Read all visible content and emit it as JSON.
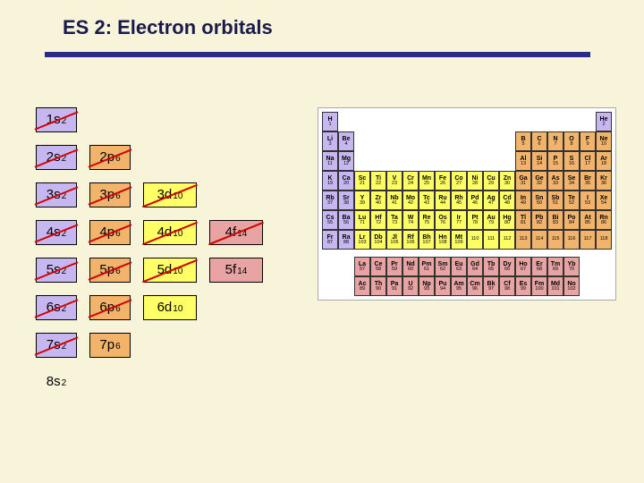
{
  "title": "ES 2: Electron orbitals",
  "orbital_colors": {
    "s": "#c7b7f0",
    "p": "#f2b36a",
    "d": "#ffff66",
    "f": "#e8a3a3",
    "none": "transparent"
  },
  "orbital_rows": [
    [
      {
        "t": "1s",
        "e": "2",
        "c": "s",
        "slash": true
      }
    ],
    [
      {
        "t": "2s",
        "e": "2",
        "c": "s",
        "slash": true
      },
      {
        "t": "2p",
        "e": "6",
        "c": "p",
        "slash": true
      }
    ],
    [
      {
        "t": "3s",
        "e": "2",
        "c": "s",
        "slash": true
      },
      {
        "t": "3p",
        "e": "6",
        "c": "p",
        "slash": true
      },
      {
        "t": "3d",
        "e": "10",
        "c": "d",
        "slash": true
      }
    ],
    [
      {
        "t": "4s",
        "e": "2",
        "c": "s",
        "slash": true
      },
      {
        "t": "4p",
        "e": "6",
        "c": "p",
        "slash": true
      },
      {
        "t": "4d",
        "e": "10",
        "c": "d",
        "slash": true
      },
      {
        "t": "4f",
        "e": "14",
        "c": "f",
        "slash": true
      }
    ],
    [
      {
        "t": "5s",
        "e": "2",
        "c": "s",
        "slash": true
      },
      {
        "t": "5p",
        "e": "6",
        "c": "p",
        "slash": true
      },
      {
        "t": "5d",
        "e": "10",
        "c": "d",
        "slash": true
      },
      {
        "t": "5f",
        "e": "14",
        "c": "f",
        "slash": false
      }
    ],
    [
      {
        "t": "6s",
        "e": "2",
        "c": "s",
        "slash": true
      },
      {
        "t": "6p",
        "e": "6",
        "c": "p",
        "slash": true
      },
      {
        "t": "6d",
        "e": "10",
        "c": "d",
        "slash": false
      }
    ],
    [
      {
        "t": "7s",
        "e": "2",
        "c": "s",
        "slash": true
      },
      {
        "t": "7p",
        "e": "6",
        "c": "p",
        "slash": false
      }
    ],
    [
      {
        "t": "8s",
        "e": "2",
        "c": "none",
        "slash": false,
        "noborder": true
      }
    ]
  ],
  "block_colors": {
    "s": "#c7b7f0",
    "p": "#f2b36a",
    "d": "#ffff66",
    "f": "#e8a3a3"
  },
  "elements_main": [
    {
      "n": 1,
      "s": "H",
      "r": 1,
      "c": 1,
      "b": "s"
    },
    {
      "n": 2,
      "s": "He",
      "r": 1,
      "c": 18,
      "b": "s"
    },
    {
      "n": 3,
      "s": "Li",
      "r": 2,
      "c": 1,
      "b": "s"
    },
    {
      "n": 4,
      "s": "Be",
      "r": 2,
      "c": 2,
      "b": "s"
    },
    {
      "n": 5,
      "s": "B",
      "r": 2,
      "c": 13,
      "b": "p"
    },
    {
      "n": 6,
      "s": "C",
      "r": 2,
      "c": 14,
      "b": "p"
    },
    {
      "n": 7,
      "s": "N",
      "r": 2,
      "c": 15,
      "b": "p"
    },
    {
      "n": 8,
      "s": "O",
      "r": 2,
      "c": 16,
      "b": "p"
    },
    {
      "n": 9,
      "s": "F",
      "r": 2,
      "c": 17,
      "b": "p"
    },
    {
      "n": 10,
      "s": "Ne",
      "r": 2,
      "c": 18,
      "b": "p"
    },
    {
      "n": 11,
      "s": "Na",
      "r": 3,
      "c": 1,
      "b": "s"
    },
    {
      "n": 12,
      "s": "Mg",
      "r": 3,
      "c": 2,
      "b": "s"
    },
    {
      "n": 13,
      "s": "Al",
      "r": 3,
      "c": 13,
      "b": "p"
    },
    {
      "n": 14,
      "s": "Si",
      "r": 3,
      "c": 14,
      "b": "p"
    },
    {
      "n": 15,
      "s": "P",
      "r": 3,
      "c": 15,
      "b": "p"
    },
    {
      "n": 16,
      "s": "S",
      "r": 3,
      "c": 16,
      "b": "p"
    },
    {
      "n": 17,
      "s": "Cl",
      "r": 3,
      "c": 17,
      "b": "p"
    },
    {
      "n": 18,
      "s": "Ar",
      "r": 3,
      "c": 18,
      "b": "p"
    },
    {
      "n": 19,
      "s": "K",
      "r": 4,
      "c": 1,
      "b": "s"
    },
    {
      "n": 20,
      "s": "Ca",
      "r": 4,
      "c": 2,
      "b": "s"
    },
    {
      "n": 21,
      "s": "Sc",
      "r": 4,
      "c": 3,
      "b": "d"
    },
    {
      "n": 22,
      "s": "Ti",
      "r": 4,
      "c": 4,
      "b": "d"
    },
    {
      "n": 23,
      "s": "V",
      "r": 4,
      "c": 5,
      "b": "d"
    },
    {
      "n": 24,
      "s": "Cr",
      "r": 4,
      "c": 6,
      "b": "d"
    },
    {
      "n": 25,
      "s": "Mn",
      "r": 4,
      "c": 7,
      "b": "d"
    },
    {
      "n": 26,
      "s": "Fe",
      "r": 4,
      "c": 8,
      "b": "d"
    },
    {
      "n": 27,
      "s": "Co",
      "r": 4,
      "c": 9,
      "b": "d"
    },
    {
      "n": 28,
      "s": "Ni",
      "r": 4,
      "c": 10,
      "b": "d"
    },
    {
      "n": 29,
      "s": "Cu",
      "r": 4,
      "c": 11,
      "b": "d"
    },
    {
      "n": 30,
      "s": "Zn",
      "r": 4,
      "c": 12,
      "b": "d"
    },
    {
      "n": 31,
      "s": "Ga",
      "r": 4,
      "c": 13,
      "b": "p"
    },
    {
      "n": 32,
      "s": "Ge",
      "r": 4,
      "c": 14,
      "b": "p"
    },
    {
      "n": 33,
      "s": "As",
      "r": 4,
      "c": 15,
      "b": "p"
    },
    {
      "n": 34,
      "s": "Se",
      "r": 4,
      "c": 16,
      "b": "p"
    },
    {
      "n": 35,
      "s": "Br",
      "r": 4,
      "c": 17,
      "b": "p"
    },
    {
      "n": 36,
      "s": "Kr",
      "r": 4,
      "c": 18,
      "b": "p"
    },
    {
      "n": 37,
      "s": "Rb",
      "r": 5,
      "c": 1,
      "b": "s"
    },
    {
      "n": 38,
      "s": "Sr",
      "r": 5,
      "c": 2,
      "b": "s"
    },
    {
      "n": 39,
      "s": "Y",
      "r": 5,
      "c": 3,
      "b": "d"
    },
    {
      "n": 40,
      "s": "Zr",
      "r": 5,
      "c": 4,
      "b": "d"
    },
    {
      "n": 41,
      "s": "Nb",
      "r": 5,
      "c": 5,
      "b": "d"
    },
    {
      "n": 42,
      "s": "Mo",
      "r": 5,
      "c": 6,
      "b": "d"
    },
    {
      "n": 43,
      "s": "Tc",
      "r": 5,
      "c": 7,
      "b": "d"
    },
    {
      "n": 44,
      "s": "Ru",
      "r": 5,
      "c": 8,
      "b": "d"
    },
    {
      "n": 45,
      "s": "Rh",
      "r": 5,
      "c": 9,
      "b": "d"
    },
    {
      "n": 46,
      "s": "Pd",
      "r": 5,
      "c": 10,
      "b": "d"
    },
    {
      "n": 47,
      "s": "Ag",
      "r": 5,
      "c": 11,
      "b": "d"
    },
    {
      "n": 48,
      "s": "Cd",
      "r": 5,
      "c": 12,
      "b": "d"
    },
    {
      "n": 49,
      "s": "In",
      "r": 5,
      "c": 13,
      "b": "p"
    },
    {
      "n": 50,
      "s": "Sn",
      "r": 5,
      "c": 14,
      "b": "p"
    },
    {
      "n": 51,
      "s": "Sb",
      "r": 5,
      "c": 15,
      "b": "p"
    },
    {
      "n": 52,
      "s": "Te",
      "r": 5,
      "c": 16,
      "b": "p"
    },
    {
      "n": 53,
      "s": "I",
      "r": 5,
      "c": 17,
      "b": "p"
    },
    {
      "n": 54,
      "s": "Xe",
      "r": 5,
      "c": 18,
      "b": "p"
    },
    {
      "n": 55,
      "s": "Cs",
      "r": 6,
      "c": 1,
      "b": "s"
    },
    {
      "n": 56,
      "s": "Ba",
      "r": 6,
      "c": 2,
      "b": "s"
    },
    {
      "n": 71,
      "s": "Lu",
      "r": 6,
      "c": 3,
      "b": "d"
    },
    {
      "n": 72,
      "s": "Hf",
      "r": 6,
      "c": 4,
      "b": "d"
    },
    {
      "n": 73,
      "s": "Ta",
      "r": 6,
      "c": 5,
      "b": "d"
    },
    {
      "n": 74,
      "s": "W",
      "r": 6,
      "c": 6,
      "b": "d"
    },
    {
      "n": 75,
      "s": "Re",
      "r": 6,
      "c": 7,
      "b": "d"
    },
    {
      "n": 76,
      "s": "Os",
      "r": 6,
      "c": 8,
      "b": "d"
    },
    {
      "n": 77,
      "s": "Ir",
      "r": 6,
      "c": 9,
      "b": "d"
    },
    {
      "n": 78,
      "s": "Pt",
      "r": 6,
      "c": 10,
      "b": "d"
    },
    {
      "n": 79,
      "s": "Au",
      "r": 6,
      "c": 11,
      "b": "d"
    },
    {
      "n": 80,
      "s": "Hg",
      "r": 6,
      "c": 12,
      "b": "d"
    },
    {
      "n": 81,
      "s": "Tl",
      "r": 6,
      "c": 13,
      "b": "p"
    },
    {
      "n": 82,
      "s": "Pb",
      "r": 6,
      "c": 14,
      "b": "p"
    },
    {
      "n": 83,
      "s": "Bi",
      "r": 6,
      "c": 15,
      "b": "p"
    },
    {
      "n": 84,
      "s": "Po",
      "r": 6,
      "c": 16,
      "b": "p"
    },
    {
      "n": 85,
      "s": "At",
      "r": 6,
      "c": 17,
      "b": "p"
    },
    {
      "n": 86,
      "s": "Rn",
      "r": 6,
      "c": 18,
      "b": "p"
    },
    {
      "n": 87,
      "s": "Fr",
      "r": 7,
      "c": 1,
      "b": "s"
    },
    {
      "n": 88,
      "s": "Ra",
      "r": 7,
      "c": 2,
      "b": "s"
    },
    {
      "n": 103,
      "s": "Lr",
      "r": 7,
      "c": 3,
      "b": "d"
    },
    {
      "n": 104,
      "s": "Db",
      "r": 7,
      "c": 4,
      "b": "d"
    },
    {
      "n": 105,
      "s": "Jl",
      "r": 7,
      "c": 5,
      "b": "d"
    },
    {
      "n": 106,
      "s": "Rf",
      "r": 7,
      "c": 6,
      "b": "d"
    },
    {
      "n": 107,
      "s": "Bh",
      "r": 7,
      "c": 7,
      "b": "d"
    },
    {
      "n": 108,
      "s": "Hn",
      "r": 7,
      "c": 8,
      "b": "d"
    },
    {
      "n": 109,
      "s": "Mt",
      "r": 7,
      "c": 9,
      "b": "d"
    },
    {
      "n": 110,
      "s": "",
      "r": 7,
      "c": 10,
      "b": "d"
    },
    {
      "n": 111,
      "s": "",
      "r": 7,
      "c": 11,
      "b": "d"
    },
    {
      "n": 112,
      "s": "",
      "r": 7,
      "c": 12,
      "b": "d"
    },
    {
      "n": 113,
      "s": "",
      "r": 7,
      "c": 13,
      "b": "p"
    },
    {
      "n": 114,
      "s": "",
      "r": 7,
      "c": 14,
      "b": "p"
    },
    {
      "n": 115,
      "s": "",
      "r": 7,
      "c": 15,
      "b": "p"
    },
    {
      "n": 116,
      "s": "",
      "r": 7,
      "c": 16,
      "b": "p"
    },
    {
      "n": 117,
      "s": "",
      "r": 7,
      "c": 17,
      "b": "p"
    },
    {
      "n": 118,
      "s": "",
      "r": 7,
      "c": 18,
      "b": "p"
    }
  ],
  "elements_f": [
    {
      "n": 57,
      "s": "La",
      "r": 1,
      "c": 1
    },
    {
      "n": 58,
      "s": "Ce",
      "r": 1,
      "c": 2
    },
    {
      "n": 59,
      "s": "Pr",
      "r": 1,
      "c": 3
    },
    {
      "n": 60,
      "s": "Nd",
      "r": 1,
      "c": 4
    },
    {
      "n": 61,
      "s": "Pm",
      "r": 1,
      "c": 5
    },
    {
      "n": 62,
      "s": "Sm",
      "r": 1,
      "c": 6
    },
    {
      "n": 63,
      "s": "Eu",
      "r": 1,
      "c": 7
    },
    {
      "n": 64,
      "s": "Gd",
      "r": 1,
      "c": 8
    },
    {
      "n": 65,
      "s": "Tb",
      "r": 1,
      "c": 9
    },
    {
      "n": 66,
      "s": "Dy",
      "r": 1,
      "c": 10
    },
    {
      "n": 67,
      "s": "Ho",
      "r": 1,
      "c": 11
    },
    {
      "n": 68,
      "s": "Er",
      "r": 1,
      "c": 12
    },
    {
      "n": 69,
      "s": "Tm",
      "r": 1,
      "c": 13
    },
    {
      "n": 70,
      "s": "Yb",
      "r": 1,
      "c": 14
    },
    {
      "n": 89,
      "s": "Ac",
      "r": 2,
      "c": 1
    },
    {
      "n": 90,
      "s": "Th",
      "r": 2,
      "c": 2
    },
    {
      "n": 91,
      "s": "Pa",
      "r": 2,
      "c": 3
    },
    {
      "n": 92,
      "s": "U",
      "r": 2,
      "c": 4
    },
    {
      "n": 93,
      "s": "Np",
      "r": 2,
      "c": 5
    },
    {
      "n": 94,
      "s": "Pu",
      "r": 2,
      "c": 6
    },
    {
      "n": 95,
      "s": "Am",
      "r": 2,
      "c": 7
    },
    {
      "n": 96,
      "s": "Cm",
      "r": 2,
      "c": 8
    },
    {
      "n": 97,
      "s": "Bk",
      "r": 2,
      "c": 9
    },
    {
      "n": 98,
      "s": "Cf",
      "r": 2,
      "c": 10
    },
    {
      "n": 99,
      "s": "Es",
      "r": 2,
      "c": 11
    },
    {
      "n": 100,
      "s": "Fm",
      "r": 2,
      "c": 12
    },
    {
      "n": 101,
      "s": "Md",
      "r": 2,
      "c": 13
    },
    {
      "n": 102,
      "s": "No",
      "r": 2,
      "c": 14
    }
  ]
}
